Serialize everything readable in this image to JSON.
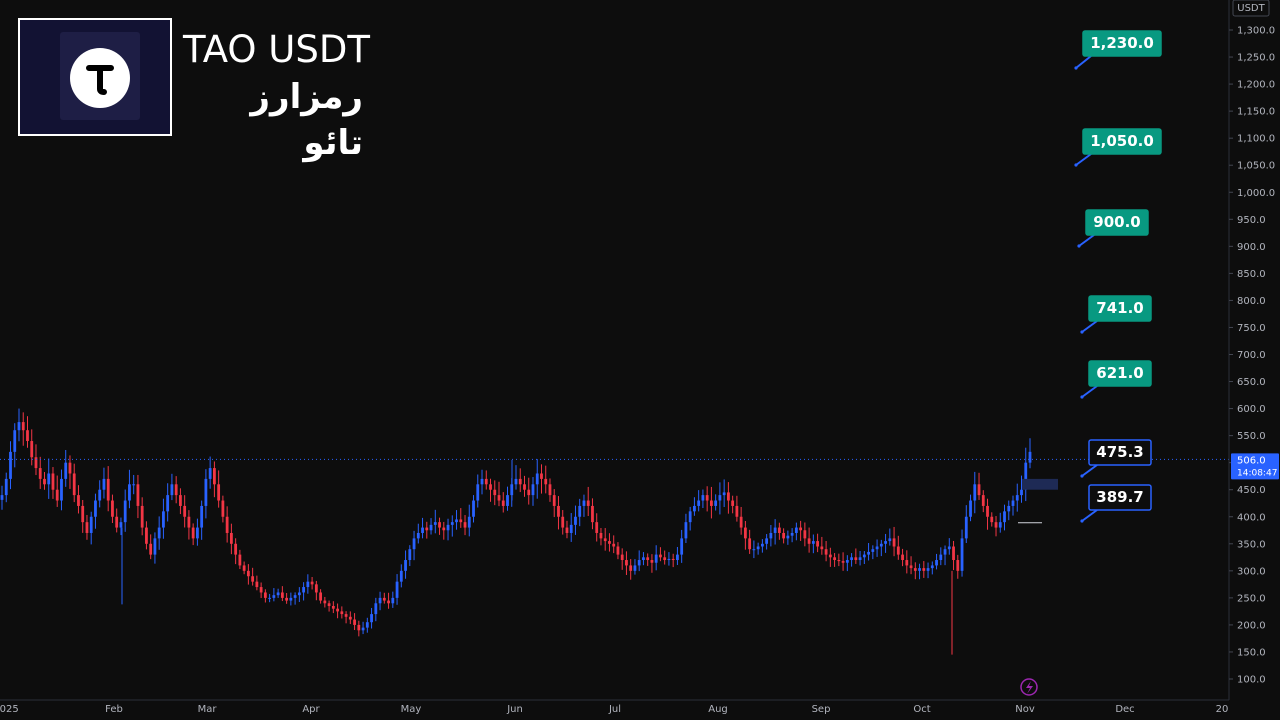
{
  "header": {
    "title": "TAO USDT",
    "subtitle": "رمزارز تائو",
    "logo_letter": "T"
  },
  "chart_data": {
    "type": "candlestick",
    "quote_currency": "USDT",
    "yaxis": {
      "ticks": [
        100,
        150,
        200,
        250,
        300,
        350,
        400,
        450,
        500,
        550,
        600,
        650,
        700,
        750,
        800,
        850,
        900,
        950,
        1000,
        1050,
        1100,
        1150,
        1200,
        1250,
        1300
      ],
      "tick_labels": [
        "100.0",
        "150.0",
        "200.0",
        "250.0",
        "300.0",
        "350.0",
        "400.0",
        "450.0",
        "500.0",
        "550.0",
        "600.0",
        "650.0",
        "700.0",
        "750.0",
        "800.0",
        "850.0",
        "900.0",
        "950.0",
        "1,000.0",
        "1,050.0",
        "1,100.0",
        "1,150.0",
        "1,200.0",
        "1,250.0",
        "1,300.0"
      ]
    },
    "xaxis": {
      "tick_labels": [
        "2025",
        "Feb",
        "Mar",
        "Apr",
        "May",
        "Jun",
        "Jul",
        "Aug",
        "Sep",
        "Oct",
        "Nov",
        "Dec",
        "20"
      ]
    },
    "current_price": 506.0,
    "current_price_label": "506.0",
    "countdown_label": "14:08:47",
    "targets": [
      {
        "label": "1,230.0",
        "value": 1230,
        "kind": "resistance"
      },
      {
        "label": "1,050.0",
        "value": 1050,
        "kind": "resistance"
      },
      {
        "label": "900.0",
        "value": 900,
        "kind": "resistance"
      },
      {
        "label": "741.0",
        "value": 741,
        "kind": "resistance"
      },
      {
        "label": "621.0",
        "value": 621,
        "kind": "resistance"
      },
      {
        "label": "475.3",
        "value": 475.3,
        "kind": "support"
      },
      {
        "label": "389.7",
        "value": 389.7,
        "kind": "support"
      }
    ],
    "series_closes": [
      440,
      470,
      520,
      560,
      575,
      560,
      540,
      510,
      490,
      470,
      460,
      480,
      450,
      430,
      470,
      500,
      480,
      440,
      420,
      390,
      370,
      400,
      430,
      450,
      470,
      430,
      400,
      380,
      390,
      430,
      460,
      460,
      420,
      380,
      350,
      330,
      360,
      380,
      410,
      440,
      460,
      440,
      420,
      400,
      380,
      360,
      380,
      420,
      470,
      490,
      460,
      430,
      400,
      370,
      350,
      330,
      310,
      300,
      290,
      280,
      270,
      260,
      250,
      250,
      255,
      260,
      250,
      245,
      250,
      255,
      260,
      270,
      280,
      275,
      260,
      245,
      240,
      235,
      230,
      225,
      220,
      215,
      210,
      200,
      190,
      195,
      205,
      220,
      240,
      250,
      245,
      240,
      250,
      280,
      300,
      320,
      340,
      360,
      370,
      380,
      375,
      385,
      390,
      380,
      375,
      385,
      390,
      395,
      390,
      380,
      400,
      430,
      460,
      470,
      460,
      450,
      440,
      430,
      420,
      440,
      460,
      470,
      460,
      450,
      440,
      460,
      480,
      470,
      460,
      440,
      420,
      400,
      380,
      370,
      385,
      400,
      420,
      430,
      420,
      390,
      370,
      360,
      355,
      350,
      345,
      330,
      320,
      310,
      300,
      310,
      320,
      325,
      320,
      315,
      330,
      325,
      320,
      322,
      320,
      330,
      360,
      390,
      410,
      420,
      430,
      440,
      430,
      420,
      430,
      440,
      445,
      430,
      420,
      400,
      380,
      360,
      340,
      340,
      345,
      350,
      360,
      370,
      380,
      370,
      360,
      365,
      370,
      380,
      375,
      360,
      350,
      355,
      345,
      340,
      330,
      325,
      320,
      318,
      315,
      320,
      325,
      320,
      325,
      330,
      335,
      340,
      345,
      350,
      355,
      360,
      345,
      330,
      320,
      310,
      305,
      300,
      305,
      300,
      305,
      310,
      320,
      330,
      340,
      345,
      320,
      300,
      360,
      400,
      430,
      460,
      440,
      420,
      400,
      390,
      380,
      390,
      410,
      420,
      430,
      440,
      450,
      500,
      520
    ]
  }
}
